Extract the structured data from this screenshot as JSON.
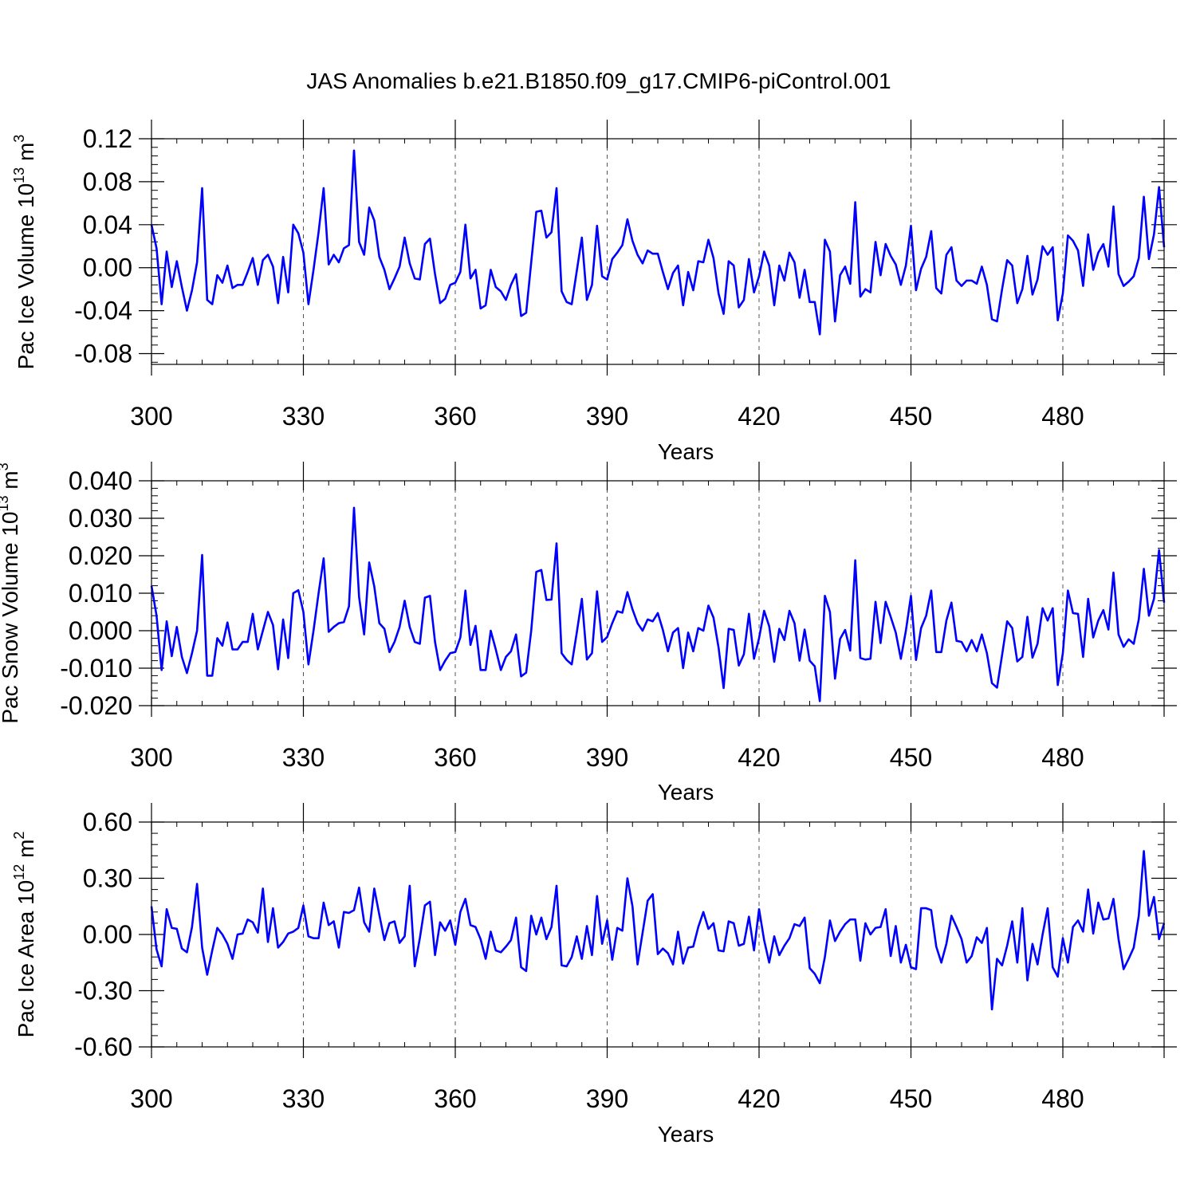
{
  "title": "JAS Anomalies b.e21.B1850.f09_g17.CMIP6-piControl.001",
  "chart_data": [
    {
      "type": "line",
      "title": "JAS Anomalies b.e21.B1850.f09_g17.CMIP6-piControl.001",
      "ylabel": "Pac Ice Volume 10",
      "ylabel_exp": "13",
      "ylabel_unit": " m",
      "ylabel_unit_exp": "3",
      "xlabel": "Years",
      "xlim": [
        300,
        500
      ],
      "ylim": [
        -0.09,
        0.12
      ],
      "yticks": [
        -0.08,
        -0.04,
        0.0,
        0.04,
        0.08,
        0.12
      ],
      "ytick_labels": [
        "-0.08",
        "-0.04",
        "0.00",
        "0.04",
        "0.08",
        "0.12"
      ],
      "xticks": [
        300,
        330,
        360,
        390,
        420,
        450,
        480
      ],
      "xtick_labels": [
        "300",
        "330",
        "360",
        "390",
        "420",
        "450",
        "480"
      ],
      "color": "#0000ff",
      "x_start": 300,
      "values": [
        0.04,
        0.018,
        -0.034,
        0.015,
        -0.018,
        0.006,
        -0.018,
        -0.04,
        -0.021,
        0.005,
        0.074,
        -0.03,
        -0.034,
        -0.007,
        -0.014,
        0.002,
        -0.019,
        -0.016,
        -0.016,
        -0.004,
        0.009,
        -0.016,
        0.007,
        0.012,
        0.001,
        -0.033,
        0.01,
        -0.023,
        0.04,
        0.032,
        0.014,
        -0.034,
        -0.002,
        0.033,
        0.074,
        0.003,
        0.012,
        0.005,
        0.018,
        0.021,
        0.109,
        0.024,
        0.012,
        0.056,
        0.044,
        0.01,
        -0.002,
        -0.02,
        -0.01,
        0.001,
        0.028,
        0.004,
        -0.01,
        -0.011,
        0.022,
        0.027,
        -0.006,
        -0.033,
        -0.029,
        -0.016,
        -0.014,
        -0.004,
        0.04,
        -0.01,
        -0.002,
        -0.038,
        -0.035,
        -0.002,
        -0.018,
        -0.022,
        -0.03,
        -0.016,
        -0.006,
        -0.045,
        -0.042,
        0.005,
        0.052,
        0.053,
        0.028,
        0.033,
        0.074,
        -0.022,
        -0.032,
        -0.034,
        -0.003,
        0.028,
        -0.03,
        -0.016,
        0.039,
        -0.008,
        -0.011,
        0.008,
        0.014,
        0.021,
        0.045,
        0.025,
        0.012,
        0.004,
        0.016,
        0.013,
        0.013,
        -0.004,
        -0.02,
        -0.005,
        0.002,
        -0.035,
        -0.004,
        -0.021,
        0.006,
        0.005,
        0.026,
        0.009,
        -0.024,
        -0.043,
        0.006,
        0.002,
        -0.037,
        -0.03,
        0.008,
        -0.023,
        -0.008,
        0.015,
        0.002,
        -0.035,
        0.002,
        -0.012,
        0.014,
        0.005,
        -0.028,
        -0.002,
        -0.032,
        -0.032,
        -0.062,
        0.026,
        0.015,
        -0.05,
        -0.007,
        0.001,
        -0.015,
        0.061,
        -0.027,
        -0.02,
        -0.023,
        0.024,
        -0.007,
        0.022,
        0.011,
        0.003,
        -0.016,
        0.002,
        0.039,
        -0.021,
        -0.001,
        0.01,
        0.034,
        -0.019,
        -0.024,
        0.012,
        0.019,
        -0.012,
        -0.017,
        -0.012,
        -0.012,
        -0.015,
        0.001,
        -0.016,
        -0.048,
        -0.05,
        -0.02,
        0.007,
        0.002,
        -0.033,
        -0.02,
        0.011,
        -0.025,
        -0.011,
        0.02,
        0.012,
        0.019,
        -0.049,
        -0.024,
        0.03,
        0.025,
        0.016,
        -0.017,
        0.031,
        -0.002,
        0.014,
        0.022,
        0.001,
        0.057,
        -0.006,
        -0.017,
        -0.013,
        -0.008,
        0.009,
        0.066,
        0.008,
        0.031,
        0.075,
        0.019
      ]
    },
    {
      "type": "line",
      "ylabel": "Pac Snow Volume 10",
      "ylabel_exp": "13",
      "ylabel_unit": " m",
      "ylabel_unit_exp": "3",
      "xlabel": "Years",
      "xlim": [
        300,
        500
      ],
      "ylim": [
        -0.02,
        0.04
      ],
      "yticks": [
        -0.02,
        -0.01,
        0.0,
        0.01,
        0.02,
        0.03,
        0.04
      ],
      "ytick_labels": [
        "-0.020",
        "-0.010",
        "0.000",
        "0.010",
        "0.020",
        "0.030",
        "0.040"
      ],
      "xticks": [
        300,
        330,
        360,
        390,
        420,
        450,
        480
      ],
      "xtick_labels": [
        "300",
        "330",
        "360",
        "390",
        "420",
        "450",
        "480"
      ],
      "color": "#0000ff",
      "x_start": 300,
      "values": [
        0.012,
        0.004,
        -0.0105,
        0.0025,
        -0.0068,
        0.001,
        -0.007,
        -0.0113,
        -0.006,
        0.0,
        0.0202,
        -0.012,
        -0.012,
        -0.002,
        -0.004,
        0.0022,
        -0.005,
        -0.005,
        -0.003,
        -0.003,
        0.0045,
        -0.005,
        0.0,
        0.005,
        0.0015,
        -0.0103,
        0.003,
        -0.0073,
        0.01,
        0.0108,
        0.005,
        -0.009,
        0.0,
        0.01,
        0.0193,
        -0.0003,
        0.001,
        0.002,
        0.0023,
        0.0065,
        0.0328,
        0.009,
        -0.001,
        0.0182,
        0.0118,
        0.002,
        0.0005,
        -0.0057,
        -0.003,
        0.001,
        0.008,
        0.001,
        -0.003,
        -0.0035,
        0.0088,
        0.0093,
        -0.003,
        -0.0105,
        -0.008,
        -0.006,
        -0.0057,
        -0.0018,
        0.0107,
        -0.0038,
        0.0013,
        -0.0105,
        -0.0105,
        0.0,
        -0.005,
        -0.0105,
        -0.007,
        -0.0055,
        -0.001,
        -0.0122,
        -0.0112,
        0.0,
        0.0157,
        0.0162,
        0.0082,
        0.0083,
        0.0233,
        -0.006,
        -0.0078,
        -0.009,
        -0.0005,
        0.0085,
        -0.0077,
        -0.006,
        0.0105,
        -0.003,
        -0.0017,
        0.002,
        0.0052,
        0.0048,
        0.0103,
        0.0057,
        0.002,
        0.0,
        0.003,
        0.0025,
        0.0047,
        0.0002,
        -0.0055,
        -0.0005,
        0.0007,
        -0.01,
        -0.0005,
        -0.0055,
        0.0007,
        0.0,
        0.0067,
        0.0035,
        -0.0045,
        -0.0153,
        0.0005,
        0.0002,
        -0.0093,
        -0.0063,
        0.0045,
        -0.0075,
        -0.002,
        0.0053,
        0.0012,
        -0.0083,
        0.0005,
        -0.0025,
        0.0053,
        0.002,
        -0.008,
        0.0003,
        -0.008,
        -0.0095,
        -0.0188,
        0.0093,
        0.005,
        -0.0128,
        -0.0022,
        0.0002,
        -0.0053,
        0.0188,
        -0.0073,
        -0.0077,
        -0.0075,
        0.0077,
        -0.0033,
        0.0077,
        0.0037,
        -0.0005,
        -0.0075,
        0.0,
        0.0093,
        -0.0078,
        0.0007,
        0.004,
        0.0107,
        -0.0057,
        -0.0057,
        0.0027,
        0.0075,
        -0.0027,
        -0.003,
        -0.0055,
        -0.0025,
        -0.0055,
        -0.001,
        -0.006,
        -0.014,
        -0.0152,
        -0.0065,
        0.0025,
        0.0007,
        -0.0082,
        -0.007,
        0.0037,
        -0.0072,
        -0.0035,
        0.006,
        0.0027,
        0.006,
        -0.0145,
        -0.006,
        0.0107,
        0.0047,
        0.0045,
        -0.007,
        0.0085,
        -0.0018,
        0.0027,
        0.0055,
        0.0003,
        0.0155,
        -0.001,
        -0.0043,
        -0.0023,
        -0.0035,
        0.003,
        0.0165,
        0.004,
        0.0085,
        0.0215,
        0.0075
      ]
    },
    {
      "type": "line",
      "ylabel": "Pac Ice Area 10",
      "ylabel_exp": "12",
      "ylabel_unit": " m",
      "ylabel_unit_exp": "2",
      "xlabel": "Years",
      "xlim": [
        300,
        500
      ],
      "ylim": [
        -0.6,
        0.6
      ],
      "yticks": [
        -0.6,
        -0.3,
        0.0,
        0.3,
        0.6
      ],
      "ytick_labels": [
        "-0.60",
        "-0.30",
        "0.00",
        "0.30",
        "0.60"
      ],
      "xticks": [
        300,
        330,
        360,
        390,
        420,
        450,
        480
      ],
      "xtick_labels": [
        "300",
        "330",
        "360",
        "390",
        "420",
        "450",
        "480"
      ],
      "color": "#0000ff",
      "x_start": 300,
      "values": [
        0.15,
        -0.08,
        -0.17,
        0.135,
        0.035,
        0.03,
        -0.075,
        -0.095,
        0.04,
        0.27,
        -0.07,
        -0.215,
        -0.085,
        0.035,
        0.0,
        -0.05,
        -0.13,
        0.0,
        0.005,
        0.08,
        0.065,
        0.01,
        0.245,
        -0.04,
        0.14,
        -0.07,
        -0.04,
        0.005,
        0.015,
        0.035,
        0.155,
        -0.01,
        -0.02,
        -0.02,
        0.17,
        0.05,
        0.07,
        -0.07,
        0.12,
        0.115,
        0.13,
        0.25,
        0.065,
        0.015,
        0.245,
        0.105,
        -0.03,
        0.06,
        0.07,
        -0.045,
        -0.01,
        0.26,
        -0.17,
        -0.02,
        0.155,
        0.175,
        -0.11,
        0.065,
        0.02,
        0.075,
        -0.055,
        0.12,
        0.19,
        0.05,
        0.04,
        -0.025,
        -0.13,
        0.015,
        -0.085,
        -0.095,
        -0.065,
        -0.03,
        0.09,
        -0.175,
        -0.195,
        0.1,
        0.0,
        0.09,
        -0.025,
        0.04,
        0.26,
        -0.165,
        -0.17,
        -0.12,
        -0.01,
        -0.13,
        0.045,
        -0.11,
        0.205,
        -0.05,
        0.075,
        -0.135,
        0.035,
        0.02,
        0.3,
        0.15,
        -0.16,
        0.01,
        0.18,
        0.215,
        -0.105,
        -0.075,
        -0.1,
        -0.16,
        0.015,
        -0.155,
        -0.07,
        -0.065,
        0.04,
        0.12,
        0.03,
        0.06,
        -0.085,
        -0.09,
        0.07,
        0.06,
        -0.06,
        -0.05,
        0.095,
        -0.085,
        0.135,
        -0.03,
        -0.15,
        -0.01,
        -0.11,
        -0.06,
        -0.02,
        0.055,
        0.045,
        0.09,
        -0.18,
        -0.21,
        -0.26,
        -0.12,
        0.075,
        -0.035,
        0.015,
        0.055,
        0.08,
        0.08,
        -0.14,
        0.06,
        0.0,
        0.035,
        0.04,
        0.135,
        -0.115,
        0.045,
        -0.15,
        -0.055,
        -0.175,
        -0.185,
        0.14,
        0.14,
        0.13,
        -0.065,
        -0.15,
        -0.05,
        0.1,
        0.04,
        -0.025,
        -0.15,
        -0.115,
        -0.015,
        -0.045,
        0.035,
        -0.4,
        -0.13,
        -0.165,
        -0.06,
        0.07,
        -0.15,
        0.14,
        -0.245,
        -0.05,
        -0.16,
        0.0,
        0.14,
        -0.175,
        -0.225,
        -0.02,
        -0.15,
        0.04,
        0.075,
        0.015,
        0.24,
        0.005,
        0.17,
        0.08,
        0.085,
        0.19,
        -0.025,
        -0.185,
        -0.13,
        -0.07,
        0.1,
        0.445,
        0.1,
        0.2,
        -0.025,
        0.06
      ]
    }
  ]
}
